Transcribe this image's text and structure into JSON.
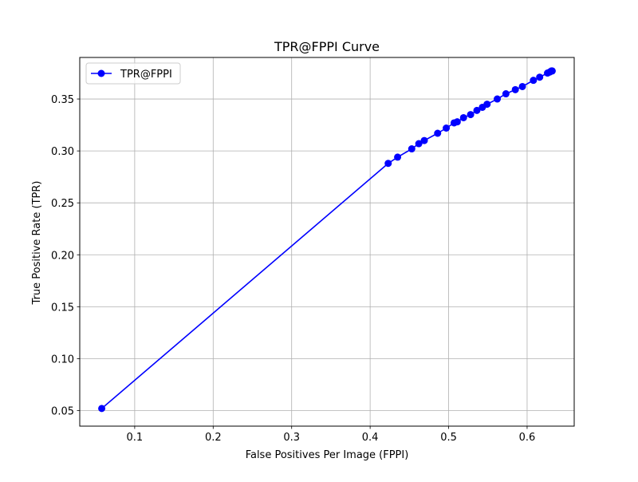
{
  "chart_data": {
    "type": "line",
    "title": "TPR@FPPI Curve",
    "xlabel": "False Positives Per Image (FPPI)",
    "ylabel": "True Positive Rate (TPR)",
    "xlim": [
      0.03,
      0.66
    ],
    "ylim": [
      0.035,
      0.39
    ],
    "xticks": [
      0.1,
      0.2,
      0.3,
      0.4,
      0.5,
      0.6
    ],
    "xtick_labels": [
      "0.1",
      "0.2",
      "0.3",
      "0.4",
      "0.5",
      "0.6"
    ],
    "yticks": [
      0.05,
      0.1,
      0.15,
      0.2,
      0.25,
      0.3,
      0.35
    ],
    "ytick_labels": [
      "0.05",
      "0.10",
      "0.15",
      "0.20",
      "0.25",
      "0.30",
      "0.35"
    ],
    "grid": true,
    "legend_position": "top-left",
    "series": [
      {
        "name": "TPR@FPPI",
        "color": "#0000ff",
        "marker": "circle",
        "x": [
          0.058,
          0.423,
          0.435,
          0.453,
          0.462,
          0.469,
          0.486,
          0.497,
          0.507,
          0.511,
          0.519,
          0.528,
          0.536,
          0.543,
          0.549,
          0.562,
          0.573,
          0.585,
          0.594,
          0.608,
          0.616,
          0.626,
          0.629,
          0.631,
          0.632
        ],
        "y": [
          0.052,
          0.288,
          0.294,
          0.302,
          0.307,
          0.31,
          0.317,
          0.322,
          0.327,
          0.328,
          0.332,
          0.335,
          0.339,
          0.342,
          0.345,
          0.35,
          0.355,
          0.359,
          0.362,
          0.368,
          0.371,
          0.375,
          0.376,
          0.377,
          0.377
        ]
      }
    ]
  }
}
